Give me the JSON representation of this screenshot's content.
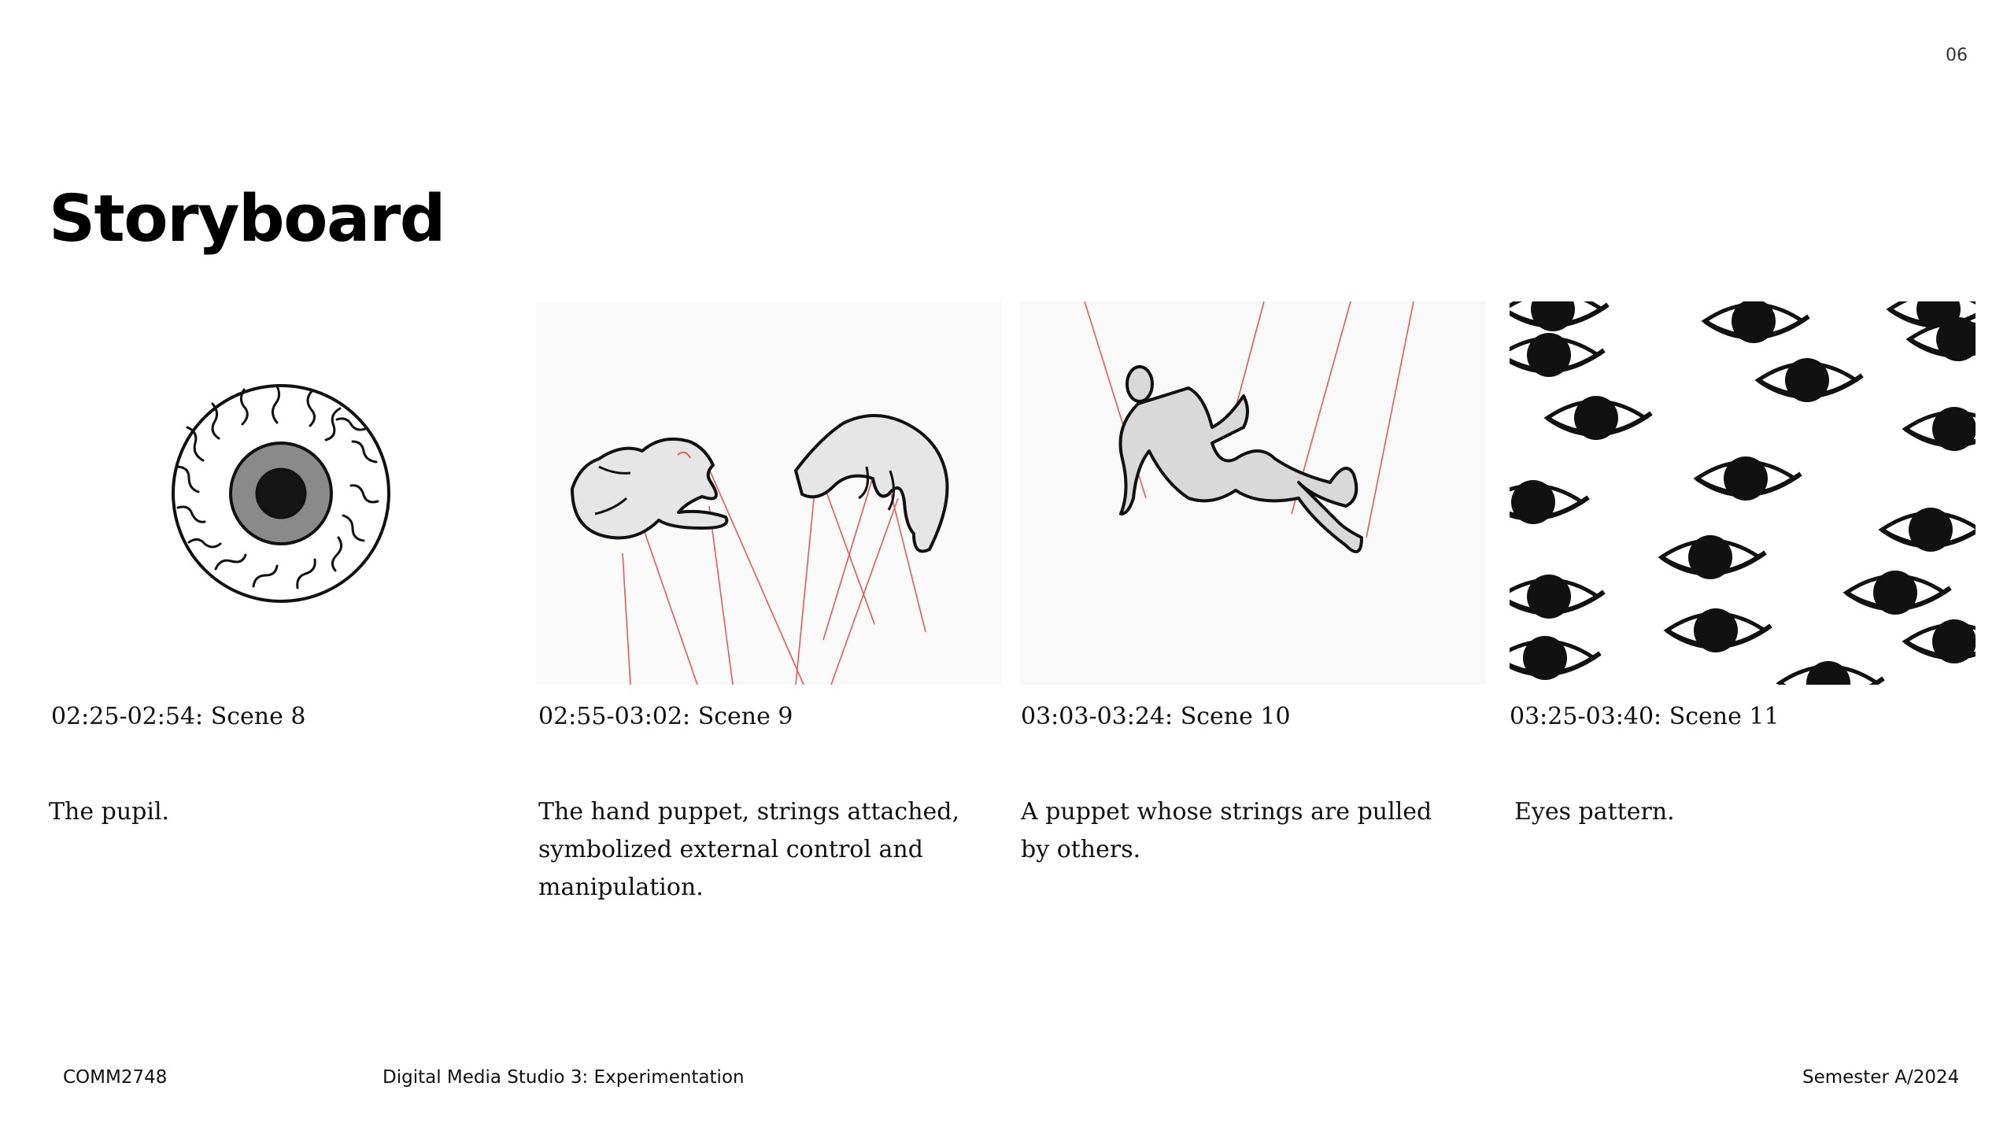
{
  "page": {
    "number": "06",
    "title": "Storyboard"
  },
  "scenes": [
    {
      "caption": "02:25-02:54: Scene 8",
      "description": "The pupil.",
      "image": "eyeball-illustration"
    },
    {
      "caption": "02:55-03:02: Scene 9",
      "description": "The hand puppet, strings attached, symbolized external control and manipulation.",
      "image": "hand-puppet-strings-illustration"
    },
    {
      "caption": "03:03-03:24: Scene 10",
      "description": "A puppet whose strings are pulled by others.",
      "image": "falling-puppet-illustration"
    },
    {
      "caption": "03:25-03:40: Scene 11",
      "description": "Eyes pattern.",
      "image": "eyes-pattern-illustration"
    }
  ],
  "footer": {
    "course_code": "COMM2748",
    "course_name": "Digital Media Studio 3: Experimentation",
    "semester": "Semester A/2024"
  },
  "colors": {
    "string_red": "#e85a5a",
    "ink": "#111111",
    "fill_gray": "#dcdcdc",
    "iris_gray": "#8a8a8a"
  }
}
